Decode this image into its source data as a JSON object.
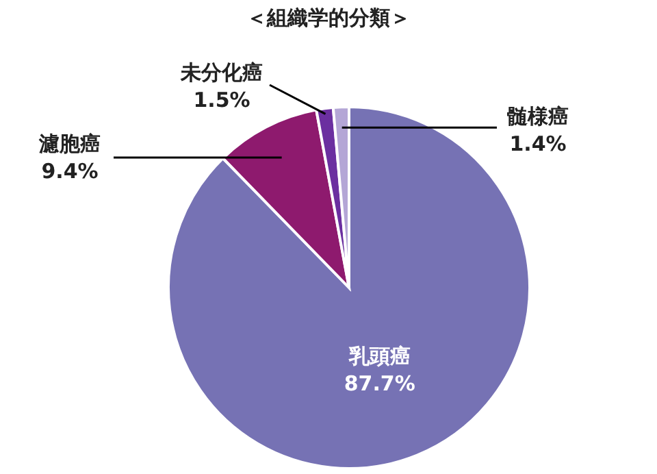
{
  "chart_data": {
    "type": "pie",
    "title": "＜組織学的分類＞",
    "categories": [
      "乳頭癌",
      "濾胞癌",
      "未分化癌",
      "髄様癌"
    ],
    "values": [
      87.7,
      9.4,
      1.5,
      1.4
    ],
    "value_labels": [
      "87.7%",
      "9.4%",
      "1.5%",
      "1.4%"
    ],
    "colors": [
      "#7672b4",
      "#8e1a6e",
      "#6b2fa0",
      "#b4a6d6"
    ],
    "legend": false
  }
}
